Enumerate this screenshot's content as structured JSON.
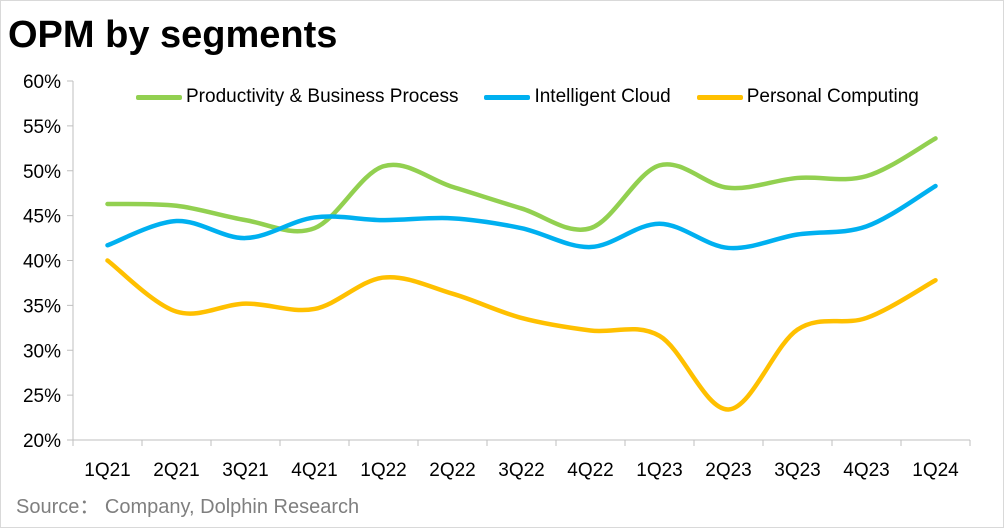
{
  "chart_data": {
    "type": "line",
    "title": "OPM by segments",
    "source": "Source：  Company, Dolphin Research",
    "categories": [
      "1Q21",
      "2Q21",
      "3Q21",
      "4Q21",
      "1Q22",
      "2Q22",
      "3Q22",
      "4Q22",
      "1Q23",
      "2Q23",
      "3Q23",
      "4Q23",
      "1Q24"
    ],
    "ylim": [
      0.2,
      0.6
    ],
    "yticks": [
      0.2,
      0.25,
      0.3,
      0.35,
      0.4,
      0.45,
      0.5,
      0.55,
      0.6
    ],
    "ytick_labels": [
      "20%",
      "25%",
      "30%",
      "35%",
      "40%",
      "45%",
      "50%",
      "55%",
      "60%"
    ],
    "grid": false,
    "legend_position": "top",
    "series": [
      {
        "name": "Productivity & Business Process",
        "color": "#92d050",
        "values": [
          0.463,
          0.461,
          0.445,
          0.436,
          0.505,
          0.482,
          0.458,
          0.436,
          0.506,
          0.481,
          0.492,
          0.494,
          0.536
        ]
      },
      {
        "name": "Intelligent Cloud",
        "color": "#00b0f0",
        "values": [
          0.417,
          0.444,
          0.425,
          0.448,
          0.445,
          0.447,
          0.436,
          0.415,
          0.441,
          0.414,
          0.429,
          0.438,
          0.483
        ]
      },
      {
        "name": "Personal Computing",
        "color": "#ffc000",
        "values": [
          0.4,
          0.343,
          0.352,
          0.346,
          0.381,
          0.363,
          0.336,
          0.322,
          0.316,
          0.234,
          0.323,
          0.336,
          0.378
        ]
      }
    ]
  }
}
